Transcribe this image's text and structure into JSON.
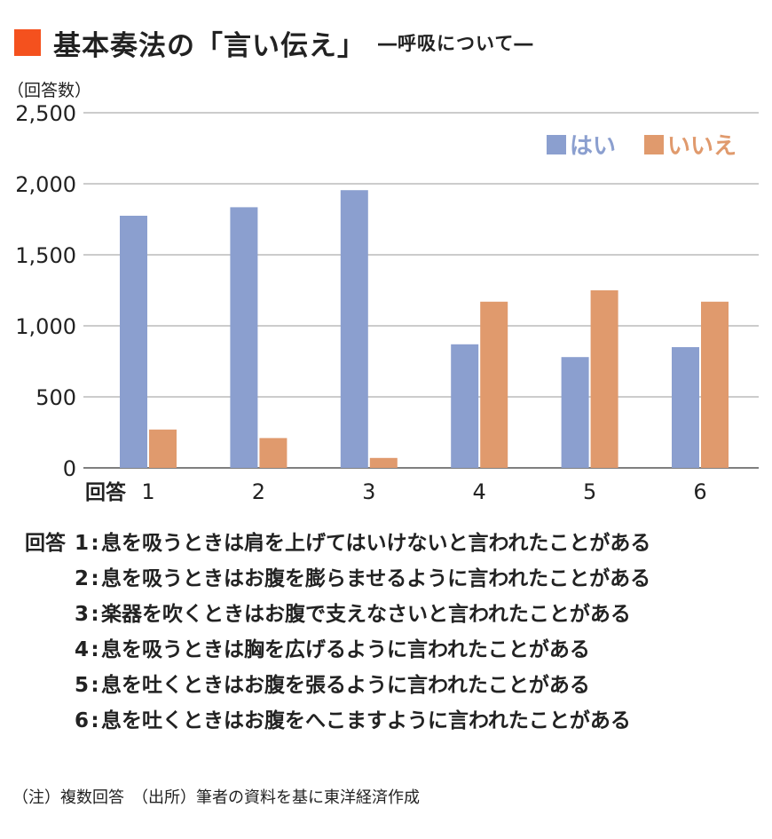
{
  "title": {
    "main": "基本奏法の「言い伝え」",
    "sub": "―呼吸について―",
    "accent_color": "#f4511e"
  },
  "chart_data": {
    "type": "bar",
    "ylabel": "（回答数）",
    "xlabel_prefix": "回答",
    "categories": [
      "1",
      "2",
      "3",
      "4",
      "5",
      "6"
    ],
    "series": [
      {
        "name": "はい",
        "color": "#8b9fcf",
        "values": [
          1775,
          1835,
          1955,
          870,
          780,
          850
        ]
      },
      {
        "name": "いいえ",
        "color": "#e09a6d",
        "values": [
          270,
          210,
          70,
          1170,
          1250,
          1170
        ]
      }
    ],
    "ylim": [
      0,
      2500
    ],
    "yticks": [
      0,
      500,
      1000,
      1500,
      2000,
      2500
    ],
    "ytick_labels": [
      "0",
      "500",
      "1,000",
      "1,500",
      "2,000",
      "2,500"
    ],
    "grid": true,
    "legend_position": "top-right"
  },
  "answers": {
    "prefix": "回答",
    "items": [
      {
        "num": "1",
        "text": "息を吸うときは肩を上げてはいけないと言われたことがある"
      },
      {
        "num": "2",
        "text": "息を吸うときはお腹を膨らませるように言われたことがある"
      },
      {
        "num": "3",
        "text": "楽器を吹くときはお腹で支えなさいと言われたことがある"
      },
      {
        "num": "4",
        "text": "息を吸うときは胸を広げるように言われたことがある"
      },
      {
        "num": "5",
        "text": "息を吐くときはお腹を張るように言われたことがある"
      },
      {
        "num": "6",
        "text": "息を吐くときはお腹をへこますように言われたことがある"
      }
    ]
  },
  "note": "（注）複数回答　（出所）筆者の資料を基に東洋経済作成"
}
